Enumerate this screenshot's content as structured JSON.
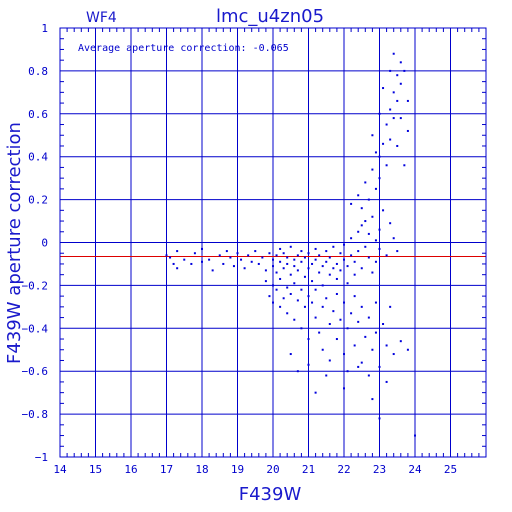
{
  "chart_data": {
    "type": "scatter",
    "title": "lmc_u4zn05",
    "chip_label": "WF4",
    "annotation": "Average aperture correction: -0.065",
    "xlabel": "F439W",
    "ylabel": "F439W aperture correction",
    "xlim": [
      14,
      26
    ],
    "ylim": [
      -1,
      1
    ],
    "x_ticks": [
      "14",
      "15",
      "16",
      "17",
      "18",
      "19",
      "20",
      "21",
      "22",
      "23",
      "24",
      "25"
    ],
    "y_ticks": [
      "1",
      "0.8",
      "0.6",
      "0.4",
      "0.2",
      "0",
      "−0.2",
      "−0.4",
      "−0.6",
      "−0.8",
      "−1"
    ],
    "grid": true,
    "average_correction": -0.065,
    "colors": {
      "points": "#0000dd",
      "grid": "#0000cc",
      "average_line": "#dd0000",
      "text": "#1a1acc"
    },
    "points": [
      [
        17.0,
        -0.06
      ],
      [
        17.1,
        -0.07
      ],
      [
        17.2,
        -0.1
      ],
      [
        17.3,
        -0.04
      ],
      [
        17.3,
        -0.12
      ],
      [
        17.5,
        -0.08
      ],
      [
        17.7,
        -0.1
      ],
      [
        17.8,
        -0.05
      ],
      [
        18.0,
        -0.09
      ],
      [
        18.0,
        -0.03
      ],
      [
        18.2,
        -0.08
      ],
      [
        18.3,
        -0.13
      ],
      [
        18.5,
        -0.06
      ],
      [
        18.6,
        -0.1
      ],
      [
        18.7,
        -0.04
      ],
      [
        18.8,
        -0.07
      ],
      [
        18.9,
        -0.11
      ],
      [
        19.0,
        -0.05
      ],
      [
        19.1,
        -0.08
      ],
      [
        19.2,
        -0.12
      ],
      [
        19.3,
        -0.06
      ],
      [
        19.4,
        -0.09
      ],
      [
        19.5,
        -0.04
      ],
      [
        19.6,
        -0.1
      ],
      [
        19.7,
        -0.07
      ],
      [
        19.8,
        -0.13
      ],
      [
        19.9,
        -0.05
      ],
      [
        20.0,
        -0.08
      ],
      [
        20.0,
        -0.11
      ],
      [
        20.1,
        -0.06
      ],
      [
        20.1,
        -0.14
      ],
      [
        20.2,
        -0.03
      ],
      [
        20.2,
        -0.09
      ],
      [
        20.3,
        -0.12
      ],
      [
        20.3,
        -0.05
      ],
      [
        20.4,
        -0.1
      ],
      [
        20.4,
        -0.07
      ],
      [
        20.5,
        -0.15
      ],
      [
        20.5,
        -0.02
      ],
      [
        20.6,
        -0.08
      ],
      [
        20.6,
        -0.11
      ],
      [
        20.7,
        -0.06
      ],
      [
        20.7,
        -0.13
      ],
      [
        20.8,
        -0.04
      ],
      [
        20.8,
        -0.09
      ],
      [
        20.9,
        -0.16
      ],
      [
        20.9,
        -0.07
      ],
      [
        21.0,
        -0.12
      ],
      [
        21.0,
        -0.05
      ],
      [
        21.1,
        -0.1
      ],
      [
        21.1,
        -0.18
      ],
      [
        21.2,
        -0.03
      ],
      [
        21.2,
        -0.08
      ],
      [
        21.3,
        -0.14
      ],
      [
        21.3,
        -0.06
      ],
      [
        21.4,
        -0.11
      ],
      [
        21.4,
        -0.2
      ],
      [
        21.5,
        -0.04
      ],
      [
        21.5,
        -0.09
      ],
      [
        21.6,
        -0.15
      ],
      [
        21.6,
        -0.07
      ],
      [
        21.7,
        -0.12
      ],
      [
        21.7,
        -0.02
      ],
      [
        21.8,
        -0.1
      ],
      [
        21.8,
        -0.17
      ],
      [
        21.9,
        -0.05
      ],
      [
        21.9,
        -0.13
      ],
      [
        22.0,
        -0.08
      ],
      [
        22.0,
        -0.01
      ],
      [
        22.1,
        -0.11
      ],
      [
        22.1,
        -0.19
      ],
      [
        22.2,
        -0.06
      ],
      [
        22.2,
        0.02
      ],
      [
        22.3,
        -0.09
      ],
      [
        22.3,
        -0.15
      ],
      [
        22.4,
        -0.04
      ],
      [
        22.4,
        0.05
      ],
      [
        22.5,
        -0.12
      ],
      [
        22.5,
        0.08
      ],
      [
        22.6,
        -0.02
      ],
      [
        22.6,
        0.1
      ],
      [
        22.7,
        -0.07
      ],
      [
        22.7,
        0.04
      ],
      [
        22.8,
        -0.14
      ],
      [
        22.8,
        0.12
      ],
      [
        22.9,
        0.01
      ],
      [
        22.9,
        -0.09
      ],
      [
        23.0,
        0.06
      ],
      [
        23.0,
        -0.03
      ],
      [
        23.1,
        0.15
      ],
      [
        23.2,
        -0.06
      ],
      [
        23.3,
        0.09
      ],
      [
        23.4,
        0.02
      ],
      [
        23.5,
        -0.04
      ],
      [
        19.8,
        -0.18
      ],
      [
        19.9,
        -0.25
      ],
      [
        20.0,
        -0.2
      ],
      [
        20.0,
        -0.28
      ],
      [
        20.1,
        -0.22
      ],
      [
        20.2,
        -0.3
      ],
      [
        20.2,
        -0.17
      ],
      [
        20.3,
        -0.26
      ],
      [
        20.4,
        -0.21
      ],
      [
        20.4,
        -0.33
      ],
      [
        20.5,
        -0.24
      ],
      [
        20.6,
        -0.19
      ],
      [
        20.6,
        -0.36
      ],
      [
        20.7,
        -0.27
      ],
      [
        20.8,
        -0.22
      ],
      [
        20.8,
        -0.4
      ],
      [
        20.9,
        -0.3
      ],
      [
        21.0,
        -0.25
      ],
      [
        21.0,
        -0.45
      ],
      [
        21.1,
        -0.28
      ],
      [
        21.2,
        -0.35
      ],
      [
        21.2,
        -0.22
      ],
      [
        21.3,
        -0.42
      ],
      [
        21.4,
        -0.3
      ],
      [
        21.4,
        -0.5
      ],
      [
        21.5,
        -0.26
      ],
      [
        21.6,
        -0.38
      ],
      [
        21.6,
        -0.55
      ],
      [
        21.7,
        -0.32
      ],
      [
        21.8,
        -0.45
      ],
      [
        21.8,
        -0.24
      ],
      [
        21.9,
        -0.36
      ],
      [
        22.0,
        -0.52
      ],
      [
        22.0,
        -0.28
      ],
      [
        22.1,
        -0.4
      ],
      [
        22.1,
        -0.6
      ],
      [
        22.2,
        -0.33
      ],
      [
        22.3,
        -0.48
      ],
      [
        22.3,
        -0.25
      ],
      [
        22.4,
        -0.37
      ],
      [
        22.5,
        -0.56
      ],
      [
        22.5,
        -0.3
      ],
      [
        22.6,
        -0.44
      ],
      [
        22.7,
        -0.62
      ],
      [
        22.7,
        -0.35
      ],
      [
        22.8,
        -0.5
      ],
      [
        22.9,
        -0.28
      ],
      [
        22.9,
        -0.42
      ],
      [
        23.0,
        -0.58
      ],
      [
        23.1,
        -0.38
      ],
      [
        23.2,
        -0.48
      ],
      [
        23.3,
        -0.3
      ],
      [
        23.4,
        -0.52
      ],
      [
        23.6,
        -0.46
      ],
      [
        23.8,
        -0.5
      ],
      [
        20.5,
        -0.52
      ],
      [
        20.7,
        -0.6
      ],
      [
        21.0,
        -0.57
      ],
      [
        21.2,
        -0.7
      ],
      [
        21.5,
        -0.62
      ],
      [
        22.0,
        -0.68
      ],
      [
        22.4,
        -0.58
      ],
      [
        22.8,
        -0.73
      ],
      [
        23.2,
        -0.65
      ],
      [
        23.0,
        -0.82
      ],
      [
        24.0,
        -0.9
      ],
      [
        22.2,
        0.18
      ],
      [
        22.4,
        0.22
      ],
      [
        22.5,
        0.16
      ],
      [
        22.6,
        0.28
      ],
      [
        22.7,
        0.2
      ],
      [
        22.8,
        0.34
      ],
      [
        22.9,
        0.25
      ],
      [
        23.0,
        0.4
      ],
      [
        23.0,
        0.3
      ],
      [
        23.1,
        0.46
      ],
      [
        23.2,
        0.36
      ],
      [
        23.2,
        0.55
      ],
      [
        23.3,
        0.48
      ],
      [
        23.3,
        0.62
      ],
      [
        23.4,
        0.58
      ],
      [
        23.4,
        0.7
      ],
      [
        23.5,
        0.66
      ],
      [
        23.5,
        0.78
      ],
      [
        23.6,
        0.74
      ],
      [
        23.6,
        0.84
      ],
      [
        23.7,
        0.8
      ],
      [
        23.4,
        0.88
      ],
      [
        23.8,
        0.52
      ],
      [
        23.7,
        0.36
      ],
      [
        22.8,
        0.5
      ],
      [
        23.0,
        0.6
      ],
      [
        23.1,
        0.72
      ],
      [
        23.3,
        0.8
      ],
      [
        23.5,
        0.45
      ],
      [
        23.6,
        0.58
      ],
      [
        23.8,
        0.66
      ],
      [
        22.9,
        0.42
      ]
    ]
  }
}
